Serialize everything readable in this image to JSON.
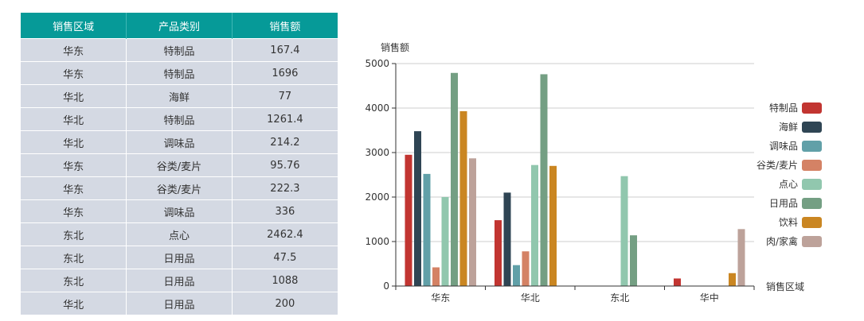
{
  "table": {
    "headers": [
      "销售区域",
      "产品类别",
      "销售额"
    ],
    "rows": [
      [
        "华东",
        "特制品",
        "167.4"
      ],
      [
        "华东",
        "特制品",
        "1696"
      ],
      [
        "华北",
        "海鲜",
        "77"
      ],
      [
        "华北",
        "特制品",
        "1261.4"
      ],
      [
        "华北",
        "调味品",
        "214.2"
      ],
      [
        "华东",
        "谷类/麦片",
        "95.76"
      ],
      [
        "华东",
        "谷类/麦片",
        "222.3"
      ],
      [
        "华东",
        "调味品",
        "336"
      ],
      [
        "东北",
        "点心",
        "2462.4"
      ],
      [
        "东北",
        "日用品",
        "47.5"
      ],
      [
        "东北",
        "日用品",
        "1088"
      ],
      [
        "华北",
        "日用品",
        "200"
      ]
    ]
  },
  "chart_data": {
    "type": "bar",
    "ylabel": "销售额",
    "xlabel": "销售区域",
    "categories": [
      "华东",
      "华北",
      "东北",
      "华中"
    ],
    "ylim": [
      0,
      5000
    ],
    "yticks": [
      0,
      1000,
      2000,
      3000,
      4000,
      5000
    ],
    "grid": true,
    "legend_position": "right",
    "series": [
      {
        "name": "特制品",
        "color": "#c23531",
        "values": [
          2950,
          1480,
          null,
          170
        ]
      },
      {
        "name": "海鲜",
        "color": "#2f4554",
        "values": [
          3480,
          2100,
          null,
          null
        ]
      },
      {
        "name": "调味品",
        "color": "#61a0a8",
        "values": [
          2520,
          470,
          null,
          null
        ]
      },
      {
        "name": "谷类/麦片",
        "color": "#d48265",
        "values": [
          420,
          780,
          null,
          null
        ]
      },
      {
        "name": "点心",
        "color": "#91c7ae",
        "values": [
          2000,
          2720,
          2470,
          null
        ]
      },
      {
        "name": "日用品",
        "color": "#749f83",
        "values": [
          4790,
          4760,
          1140,
          null
        ]
      },
      {
        "name": "饮料",
        "color": "#ca8622",
        "values": [
          3930,
          2700,
          null,
          290
        ]
      },
      {
        "name": "肉/家禽",
        "color": "#bda29a",
        "values": [
          2870,
          null,
          null,
          1280
        ]
      }
    ]
  }
}
